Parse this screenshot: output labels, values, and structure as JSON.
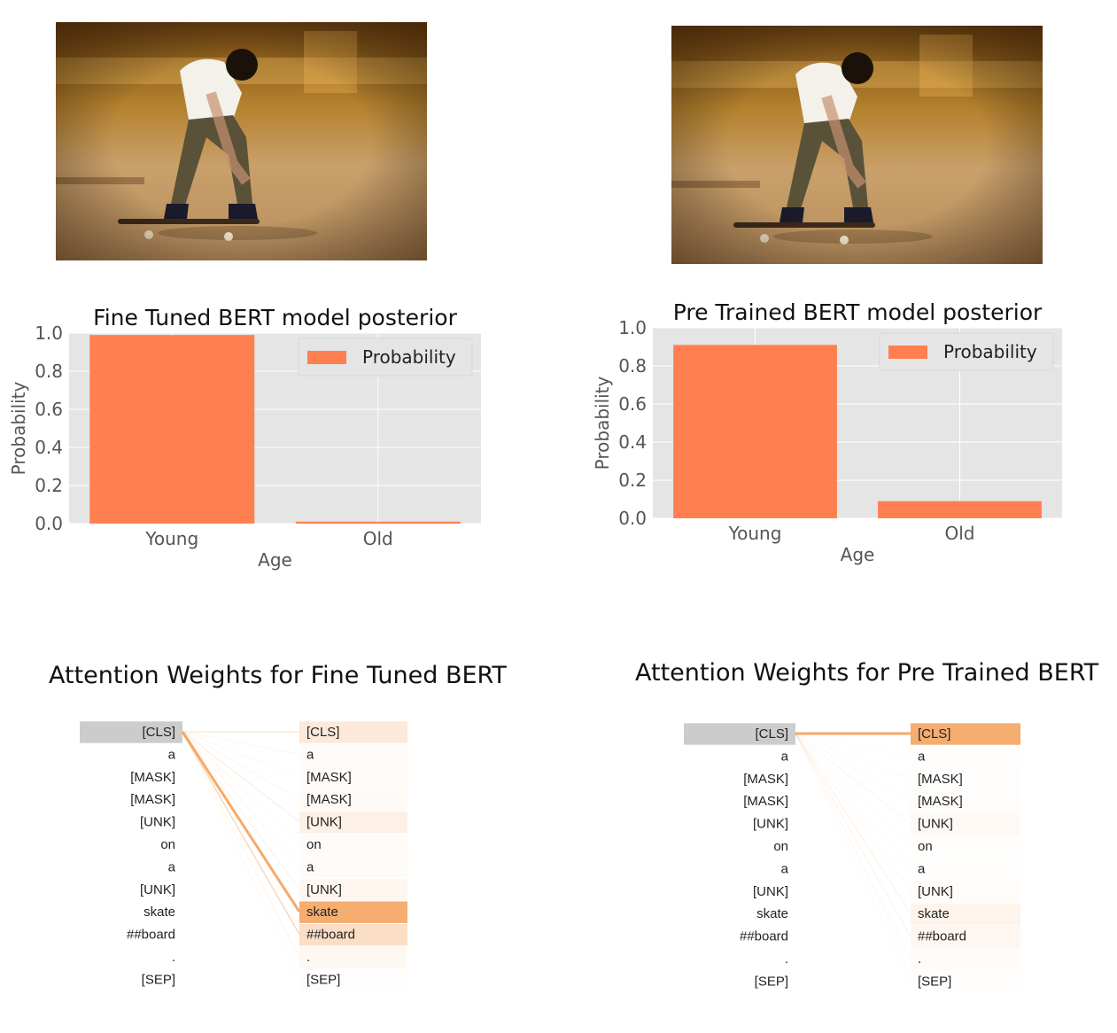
{
  "colors": {
    "bar": "#ff7f50",
    "plot_bg": "#e5e5e5",
    "grid": "#ffffff",
    "tick_text": "#555555",
    "attention": "#f4a460",
    "query_highlight": "#cccccc"
  },
  "photo": {
    "icon": "skateboarder-photo"
  },
  "chart_data": [
    {
      "type": "bar",
      "title": "Fine Tuned BERT model posterior",
      "xlabel": "Age",
      "ylabel": "Probability",
      "categories": [
        "Young",
        "Old"
      ],
      "series": [
        {
          "name": "Probability",
          "values": [
            0.99,
            0.01
          ]
        }
      ],
      "ylim": [
        0,
        1.0
      ],
      "yticks": [
        "0.0",
        "0.2",
        "0.4",
        "0.6",
        "0.8",
        "1.0"
      ],
      "legend": "top-right",
      "grid": true
    },
    {
      "type": "bar",
      "title": "Pre Trained BERT model posterior",
      "xlabel": "Age",
      "ylabel": "Probability",
      "categories": [
        "Young",
        "Old"
      ],
      "series": [
        {
          "name": "Probability",
          "values": [
            0.91,
            0.09
          ]
        }
      ],
      "ylim": [
        0,
        1.0
      ],
      "yticks": [
        "0.0",
        "0.2",
        "0.4",
        "0.6",
        "0.8",
        "1.0"
      ],
      "legend": "top-right",
      "grid": true
    }
  ],
  "attention": [
    {
      "title": "Attention Weights for Fine Tuned BERT",
      "tokens": [
        "[CLS]",
        "a",
        "[MASK]",
        "[MASK]",
        "[UNK]",
        "on",
        "a",
        "[UNK]",
        "skate",
        "##board",
        ".",
        "[SEP]"
      ],
      "weights": [
        0.12,
        0.02,
        0.02,
        0.03,
        0.08,
        0.02,
        0.02,
        0.05,
        0.45,
        0.18,
        0.04,
        0.01
      ]
    },
    {
      "title": "Attention Weights for Pre Trained BERT",
      "tokens": [
        "[CLS]",
        "a",
        "[MASK]",
        "[MASK]",
        "[UNK]",
        "on",
        "a",
        "[UNK]",
        "skate",
        "##board",
        ".",
        "[SEP]"
      ],
      "weights": [
        0.75,
        0.01,
        0.02,
        0.02,
        0.06,
        0.01,
        0.01,
        0.03,
        0.1,
        0.08,
        0.04,
        0.01
      ]
    }
  ]
}
